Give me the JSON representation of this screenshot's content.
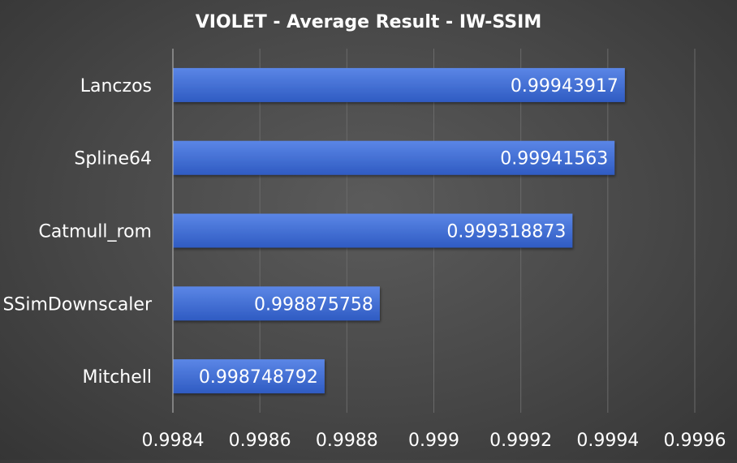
{
  "chart_data": {
    "type": "bar",
    "orientation": "horizontal",
    "title": "VIOLET - Average Result - IW-SSIM",
    "xlabel": "",
    "ylabel": "",
    "categories": [
      "Lanczos",
      "Spline64",
      "Catmull_rom",
      "SSimDownscaler",
      "Mitchell"
    ],
    "values": [
      0.99943917,
      0.99941563,
      0.999318873,
      0.998875758,
      0.998748792
    ],
    "value_labels": [
      "0.99943917",
      "0.99941563",
      "0.999318873",
      "0.998875758",
      "0.998748792"
    ],
    "xlim": [
      0.9984,
      0.9996
    ],
    "x_ticks": [
      0.9984,
      0.9986,
      0.9988,
      0.999,
      0.9992,
      0.9994,
      0.9996
    ],
    "x_tick_labels": [
      "0.9984",
      "0.9986",
      "0.9988",
      "0.999",
      "0.9992",
      "0.9994",
      "0.9996"
    ],
    "grid": true,
    "legend": "none",
    "colors": {
      "bar_top": "#5b86e6",
      "bar_bottom": "#2f5bc2",
      "grid": "#6a6a6a",
      "axis": "#bdbdbd",
      "text": "#ffffff",
      "background": "#474747"
    }
  }
}
